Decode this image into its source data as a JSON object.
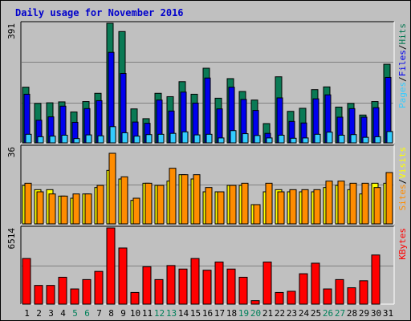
{
  "title": "Daily usage for November 2016",
  "chart_data": [
    {
      "type": "bar",
      "name": "top-panel",
      "y_tick_label": "391",
      "ylim": [
        0,
        391
      ],
      "categories": [
        "1",
        "2",
        "3",
        "4",
        "5",
        "6",
        "7",
        "8",
        "9",
        "10",
        "11",
        "12",
        "13",
        "14",
        "15",
        "16",
        "17",
        "18",
        "19",
        "20",
        "21",
        "22",
        "23",
        "24",
        "25",
        "26",
        "27",
        "28",
        "29",
        "30",
        "31"
      ],
      "series": [
        {
          "name": "Hits",
          "color": "#0a7a55",
          "values": [
            182,
            129,
            131,
            134,
            101,
            135,
            162,
            391,
            364,
            111,
            79,
            162,
            151,
            200,
            159,
            244,
            146,
            210,
            168,
            140,
            63,
            216,
            103,
            113,
            174,
            183,
            117,
            129,
            91,
            135,
            257
          ]
        },
        {
          "name": "Files",
          "color": "#0000ee",
          "values": [
            159,
            74,
            85,
            120,
            67,
            112,
            138,
            296,
            227,
            68,
            64,
            140,
            104,
            166,
            130,
            212,
            111,
            182,
            142,
            106,
            31,
            147,
            70,
            65,
            144,
            157,
            84,
            112,
            84,
            115,
            214
          ]
        },
        {
          "name": "Pages",
          "color": "#33ccff",
          "values": [
            28,
            20,
            22,
            25,
            14,
            26,
            23,
            53,
            33,
            22,
            27,
            28,
            31,
            36,
            26,
            28,
            16,
            40,
            30,
            24,
            16,
            25,
            15,
            16,
            28,
            35,
            25,
            27,
            18,
            20,
            37
          ]
        }
      ],
      "legend": [
        "Pages",
        "/",
        "Files",
        "/",
        "Hits"
      ]
    },
    {
      "type": "bar",
      "name": "middle-panel",
      "y_tick_label": "36",
      "ylim": [
        0,
        36
      ],
      "categories": [
        "1",
        "2",
        "3",
        "4",
        "5",
        "6",
        "7",
        "8",
        "9",
        "10",
        "11",
        "12",
        "13",
        "14",
        "15",
        "16",
        "17",
        "18",
        "19",
        "20",
        "21",
        "22",
        "23",
        "24",
        "25",
        "26",
        "27",
        "28",
        "29",
        "30",
        "31"
      ],
      "series": [
        {
          "name": "Visits",
          "color": "#ffff00",
          "values": [
            18,
            16,
            16,
            13,
            12,
            14,
            17,
            25,
            21,
            11,
            19,
            18,
            20,
            23,
            21,
            15,
            15,
            18,
            18,
            9,
            15,
            16,
            15,
            15,
            15,
            17,
            18,
            16,
            14,
            19,
            19
          ]
        },
        {
          "name": "Sites",
          "color": "#ff8c00",
          "values": [
            19,
            15,
            14,
            13,
            14,
            14,
            18,
            33,
            22,
            12,
            19,
            18,
            26,
            23,
            23,
            17,
            15,
            18,
            19,
            9,
            19,
            15,
            16,
            16,
            16,
            20,
            20,
            19,
            19,
            17,
            24
          ]
        }
      ],
      "legend": [
        "Sites",
        "/",
        "Visits"
      ]
    },
    {
      "type": "bar",
      "name": "bottom-panel",
      "y_tick_label": "6514",
      "ylim": [
        0,
        6514
      ],
      "categories": [
        "1",
        "2",
        "3",
        "4",
        "5",
        "6",
        "7",
        "8",
        "9",
        "10",
        "11",
        "12",
        "13",
        "14",
        "15",
        "16",
        "17",
        "18",
        "19",
        "20",
        "21",
        "22",
        "23",
        "24",
        "25",
        "26",
        "27",
        "28",
        "29",
        "30",
        "31"
      ],
      "series": [
        {
          "name": "KBytes",
          "color": "#ff0000",
          "values": [
            3900,
            1600,
            1600,
            2300,
            1300,
            2100,
            2800,
            6514,
            4800,
            1000,
            3200,
            2100,
            3300,
            3000,
            3900,
            2900,
            3600,
            3000,
            2300,
            300,
            3600,
            1000,
            1100,
            2600,
            3500,
            1300,
            2100,
            1400,
            2000,
            4200,
            0
          ]
        }
      ],
      "legend": [
        "KBytes"
      ]
    }
  ],
  "x_labels": [
    "1",
    "2",
    "3",
    "4",
    "5",
    "6",
    "7",
    "8",
    "9",
    "10",
    "11",
    "12",
    "13",
    "14",
    "15",
    "16",
    "17",
    "18",
    "19",
    "20",
    "21",
    "22",
    "23",
    "24",
    "25",
    "26",
    "27",
    "28",
    "29",
    "30",
    "31"
  ],
  "weekend_days": [
    5,
    6,
    12,
    13,
    19,
    20,
    26,
    27
  ],
  "colors": {
    "background": "#c0c0c0",
    "grid": "#808080",
    "title": "#0000cc",
    "weekday_label": "#000000",
    "weekend_label": "#00805a"
  }
}
